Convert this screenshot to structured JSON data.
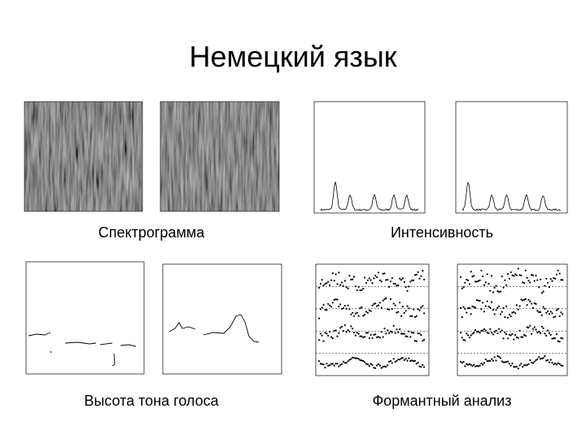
{
  "header": {
    "title": "Немецкий язык"
  },
  "panels": [
    {
      "label": "Спектрограмма"
    },
    {
      "label": "Интенсивность"
    },
    {
      "label": "Высота тона голоса"
    },
    {
      "label": "Формантный анализ"
    }
  ]
}
